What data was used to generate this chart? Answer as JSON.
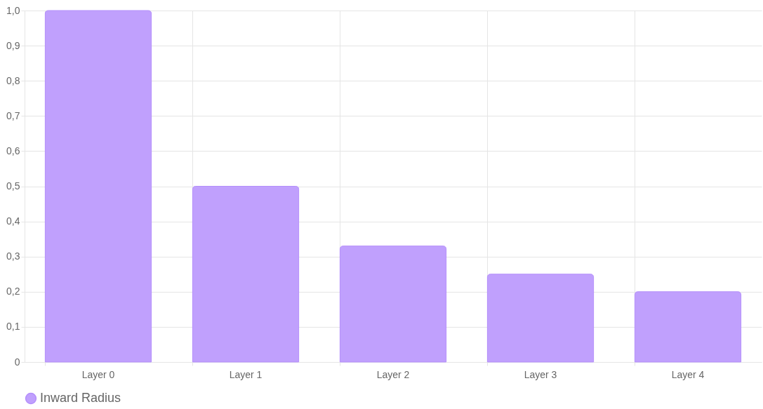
{
  "chart_data": {
    "type": "bar",
    "categories": [
      "Layer 0",
      "Layer 1",
      "Layer 2",
      "Layer 3",
      "Layer 4"
    ],
    "series": [
      {
        "name": "Inward Radius",
        "color": "#c0a0fd",
        "values": [
          1.0,
          0.5,
          0.33,
          0.25,
          0.2
        ]
      }
    ],
    "ylim": [
      0,
      1
    ],
    "yticks": [
      0,
      {
        "value": 0.1,
        "label": "0,1"
      },
      {
        "value": 0.2,
        "label": "0,2"
      },
      {
        "value": 0.3,
        "label": "0,3"
      },
      {
        "value": 0.4,
        "label": "0,4"
      },
      {
        "value": 0.5,
        "label": "0,5"
      },
      {
        "value": 0.6,
        "label": "0,6"
      },
      {
        "value": 0.7,
        "label": "0,7"
      },
      {
        "value": 0.8,
        "label": "0,8"
      },
      {
        "value": 0.9,
        "label": "0,9"
      },
      {
        "value": 1,
        "label": "1,0"
      }
    ],
    "grid": true,
    "legend": "bottom"
  }
}
